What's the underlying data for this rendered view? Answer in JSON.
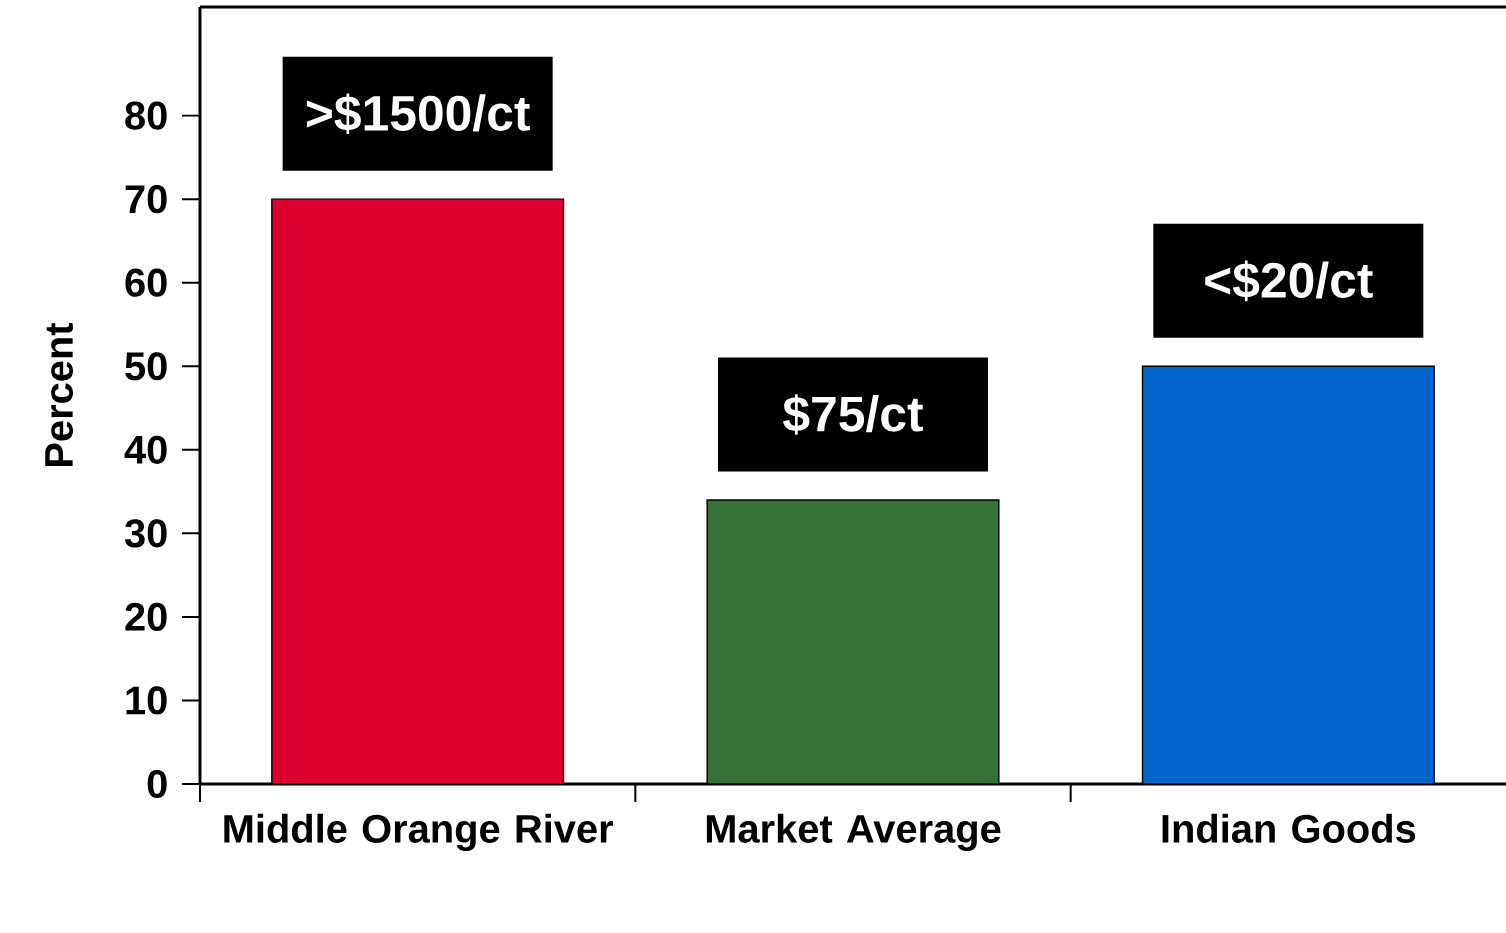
{
  "chart_data": {
    "type": "bar",
    "ylabel": "Percent",
    "categories": [
      "Middle Orange River",
      "Market Average",
      "Indian Goods"
    ],
    "values": [
      70,
      34,
      50
    ],
    "colors": [
      "#dc0030",
      "#357139",
      "#0066cc"
    ],
    "ylim": [
      0,
      93
    ],
    "yticks": [
      0,
      10,
      20,
      30,
      40,
      50,
      60,
      70,
      80
    ],
    "grid": false,
    "annotations": [
      {
        "text": ">$1500/ct",
        "x": "Middle Orange River",
        "y": 70
      },
      {
        "text": "$75/ct",
        "x": "Market Average",
        "y": 34
      },
      {
        "text": "<$20/ct",
        "x": "Indian Goods",
        "y": 50
      }
    ]
  }
}
